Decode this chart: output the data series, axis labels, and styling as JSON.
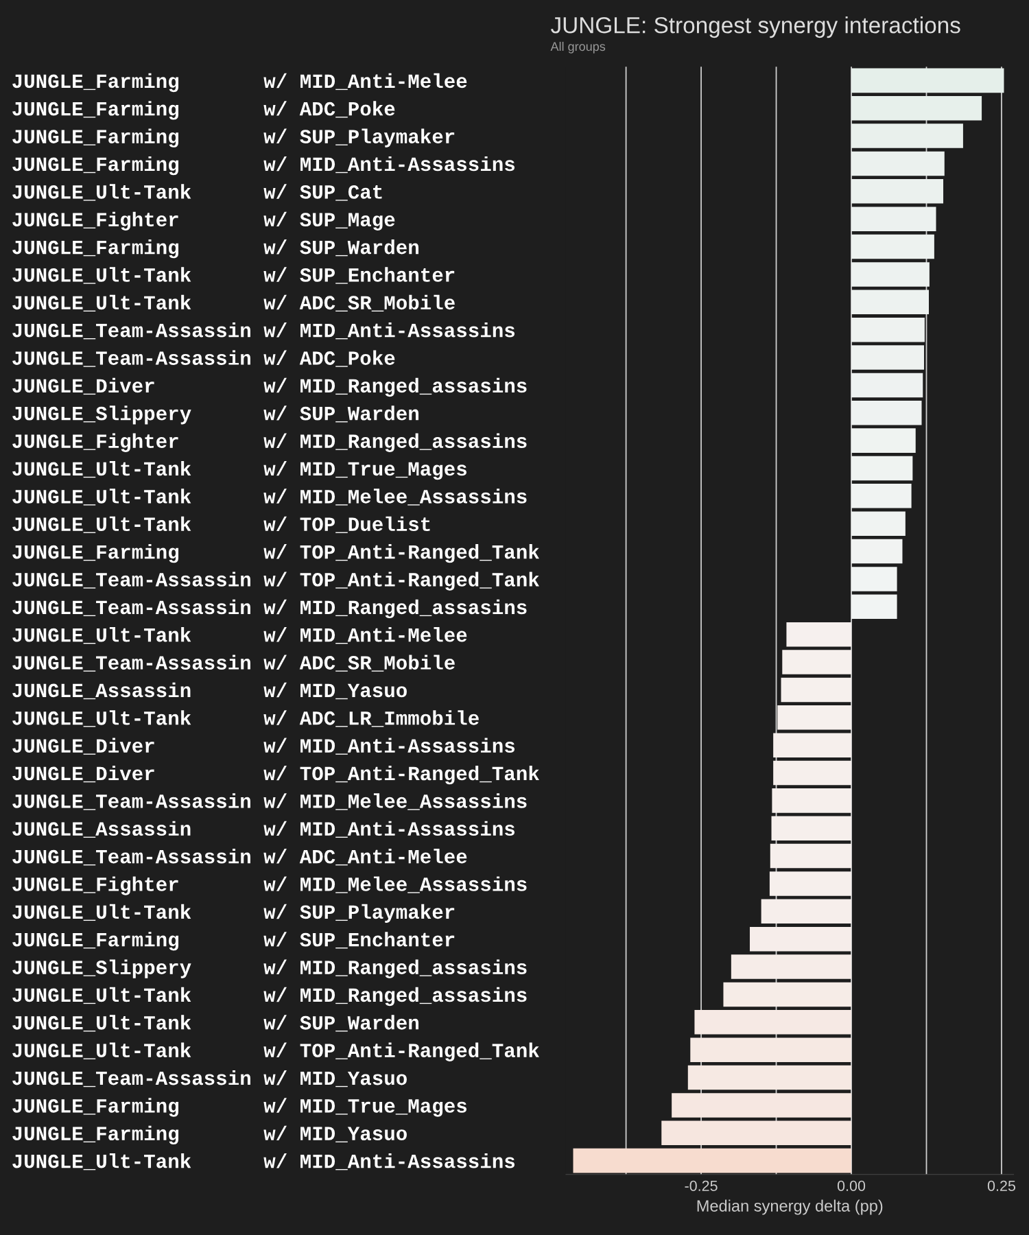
{
  "chart_data": {
    "type": "bar",
    "orientation": "horizontal",
    "title": "JUNGLE: Strongest synergy interactions",
    "subtitle": "All groups",
    "xlabel": "Median synergy delta (pp)",
    "categories": [
      "JUNGLE_Farming       w/ MID_Anti-Melee",
      "JUNGLE_Farming       w/ ADC_Poke",
      "JUNGLE_Farming       w/ SUP_Playmaker",
      "JUNGLE_Farming       w/ MID_Anti-Assassins",
      "JUNGLE_Ult-Tank      w/ SUP_Cat",
      "JUNGLE_Fighter       w/ SUP_Mage",
      "JUNGLE_Farming       w/ SUP_Warden",
      "JUNGLE_Ult-Tank      w/ SUP_Enchanter",
      "JUNGLE_Ult-Tank      w/ ADC_SR_Mobile",
      "JUNGLE_Team-Assassin w/ MID_Anti-Assassins",
      "JUNGLE_Team-Assassin w/ ADC_Poke",
      "JUNGLE_Diver         w/ MID_Ranged_assasins",
      "JUNGLE_Slippery      w/ SUP_Warden",
      "JUNGLE_Fighter       w/ MID_Ranged_assasins",
      "JUNGLE_Ult-Tank      w/ MID_True_Mages",
      "JUNGLE_Ult-Tank      w/ MID_Melee_Assassins",
      "JUNGLE_Ult-Tank      w/ TOP_Duelist",
      "JUNGLE_Farming       w/ TOP_Anti-Ranged_Tank",
      "JUNGLE_Team-Assassin w/ TOP_Anti-Ranged_Tank",
      "JUNGLE_Team-Assassin w/ MID_Ranged_assasins",
      "JUNGLE_Ult-Tank      w/ MID_Anti-Melee",
      "JUNGLE_Team-Assassin w/ ADC_SR_Mobile",
      "JUNGLE_Assassin      w/ MID_Yasuo",
      "JUNGLE_Ult-Tank      w/ ADC_LR_Immobile",
      "JUNGLE_Diver         w/ MID_Anti-Assassins",
      "JUNGLE_Diver         w/ TOP_Anti-Ranged_Tank",
      "JUNGLE_Team-Assassin w/ MID_Melee_Assassins",
      "JUNGLE_Assassin      w/ MID_Anti-Assassins",
      "JUNGLE_Team-Assassin w/ ADC_Anti-Melee",
      "JUNGLE_Fighter       w/ MID_Melee_Assassins",
      "JUNGLE_Ult-Tank      w/ SUP_Playmaker",
      "JUNGLE_Farming       w/ SUP_Enchanter",
      "JUNGLE_Slippery      w/ MID_Ranged_assasins",
      "JUNGLE_Ult-Tank      w/ MID_Ranged_assasins",
      "JUNGLE_Ult-Tank      w/ SUP_Warden",
      "JUNGLE_Ult-Tank      w/ TOP_Anti-Ranged_Tank",
      "JUNGLE_Team-Assassin w/ MID_Yasuo",
      "JUNGLE_Farming       w/ MID_True_Mages",
      "JUNGLE_Farming       w/ MID_Yasuo",
      "JUNGLE_Ult-Tank      w/ MID_Anti-Assassins"
    ],
    "values": [
      0.254,
      0.217,
      0.186,
      0.155,
      0.153,
      0.141,
      0.138,
      0.13,
      0.129,
      0.122,
      0.121,
      0.119,
      0.117,
      0.107,
      0.102,
      0.1,
      0.09,
      0.085,
      0.076,
      0.076,
      -0.108,
      -0.115,
      -0.117,
      -0.123,
      -0.13,
      -0.13,
      -0.132,
      -0.133,
      -0.135,
      -0.136,
      -0.15,
      -0.169,
      -0.2,
      -0.213,
      -0.261,
      -0.268,
      -0.272,
      -0.299,
      -0.316,
      -0.463
    ],
    "colors": [
      "#e5efea",
      "#e7f0eb",
      "#e9f0ec",
      "#ebf1ee",
      "#ebf1ee",
      "#ecf1ef",
      "#edf2ef",
      "#edf2f0",
      "#edf2f0",
      "#eef2f0",
      "#eef2f0",
      "#eef2f1",
      "#eef2f1",
      "#eff3f1",
      "#eff3f1",
      "#f0f3f2",
      "#f0f3f2",
      "#f1f3f2",
      "#f1f4f3",
      "#f1f4f3",
      "#f6f0ee",
      "#f6f0ed",
      "#f6f0ed",
      "#f6f0ed",
      "#f6efec",
      "#f6efec",
      "#f6efec",
      "#f6efec",
      "#f6efec",
      "#f6efec",
      "#f6eeeb",
      "#f6edea",
      "#f6ece8",
      "#f6ece7",
      "#f6e9e4",
      "#f6e9e3",
      "#f6e9e3",
      "#f6e7e1",
      "#f6e6df",
      "#f7dccf"
    ],
    "xlim": [
      -0.475,
      0.27
    ],
    "xticks": [
      {
        "value": -0.375,
        "label": null
      },
      {
        "value": -0.25,
        "label": "-0.25"
      },
      {
        "value": -0.125,
        "label": null
      },
      {
        "value": 0.0,
        "label": "0.00"
      },
      {
        "value": 0.125,
        "label": null
      },
      {
        "value": 0.25,
        "label": "0.25"
      }
    ],
    "grid": "x"
  }
}
